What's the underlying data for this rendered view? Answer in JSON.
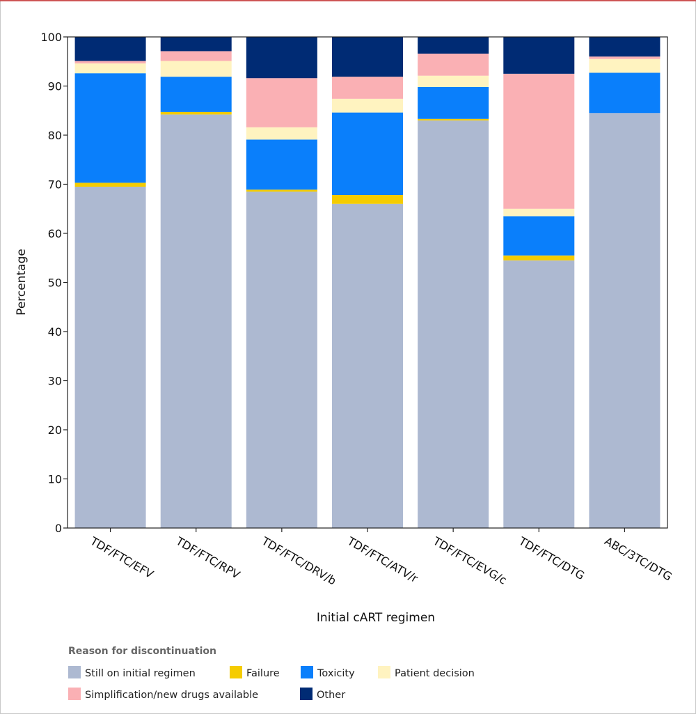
{
  "chart_data": {
    "type": "bar",
    "stacked": true,
    "title": "",
    "xlabel": "Initial cART regimen",
    "ylabel": "Percentage",
    "ylim": [
      0,
      100
    ],
    "yticks": [
      0,
      10,
      20,
      30,
      40,
      50,
      60,
      70,
      80,
      90,
      100
    ],
    "grid": false,
    "legend": {
      "title": "Reason for discontinuation",
      "placement": "bottom"
    },
    "categories": [
      "TDF/FTC/EFV",
      "TDF/FTC/RPV",
      "TDF/FTC/DRV/b",
      "TDF/FTC/ATV/r",
      "TDF/FTC/EVG/c",
      "TDF/FTC/DTG",
      "ABC/3TC/DTG"
    ],
    "series": [
      {
        "name": "Still on initial regimen",
        "color": "#adb9d1",
        "values": [
          69.5,
          84.2,
          68.5,
          66.0,
          83.0,
          54.5,
          84.5
        ]
      },
      {
        "name": "Failure",
        "color": "#f5cc00",
        "values": [
          0.8,
          0.5,
          0.4,
          1.8,
          0.3,
          1.0,
          0.0
        ]
      },
      {
        "name": "Toxicity",
        "color": "#0a7ffb",
        "values": [
          22.3,
          7.2,
          10.2,
          16.8,
          6.5,
          8.0,
          8.2
        ]
      },
      {
        "name": "Patient decision",
        "color": "#fff3c0",
        "values": [
          2.0,
          3.2,
          2.5,
          2.8,
          2.3,
          1.5,
          2.8
        ]
      },
      {
        "name": "Simplification/new drugs available",
        "color": "#fab0b4",
        "values": [
          0.5,
          2.0,
          10.0,
          4.5,
          4.5,
          27.5,
          0.5
        ]
      },
      {
        "name": "Other",
        "color": "#002b74",
        "values": [
          4.9,
          2.9,
          8.4,
          8.1,
          3.4,
          7.5,
          4.0
        ]
      }
    ]
  }
}
